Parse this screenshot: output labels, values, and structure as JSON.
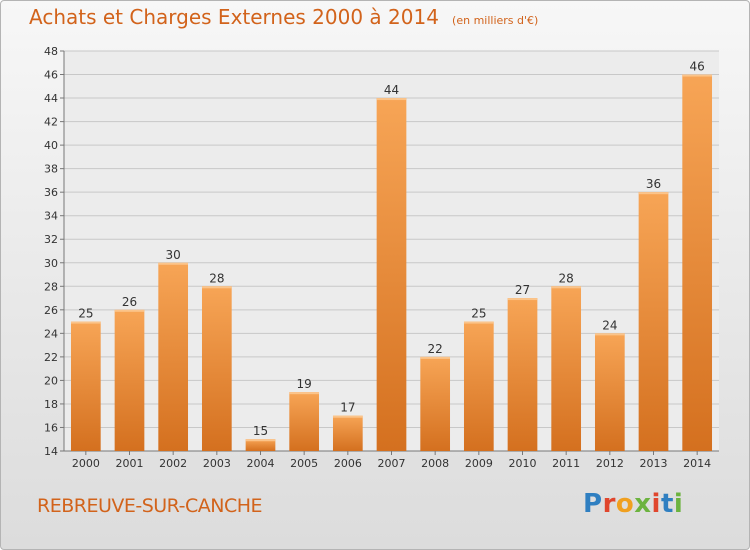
{
  "header": {
    "title": "Achats et Charges Externes 2000 à 2014",
    "subtitle": "(en milliers d'€)"
  },
  "footer": {
    "town": "REBREUVE-SUR-CANCHE",
    "brand": "Proxiti",
    "brand_colors": [
      "#2f7fc1",
      "#e0462d",
      "#f0a020",
      "#6cb33f",
      "#e0462d",
      "#2f7fc1",
      "#6cb33f"
    ]
  },
  "chart_data": {
    "type": "bar",
    "categories": [
      "2000",
      "2001",
      "2002",
      "2003",
      "2004",
      "2005",
      "2006",
      "2007",
      "2008",
      "2009",
      "2010",
      "2011",
      "2012",
      "2013",
      "2014"
    ],
    "values": [
      25,
      26,
      30,
      28,
      15,
      19,
      17,
      44,
      22,
      25,
      27,
      28,
      24,
      36,
      46
    ],
    "ylim": [
      14,
      48
    ],
    "yticks": [
      14,
      16,
      18,
      20,
      22,
      24,
      26,
      28,
      30,
      32,
      34,
      36,
      38,
      40,
      42,
      44,
      46,
      48
    ],
    "grid": true,
    "bar_color_top": "#f7a556",
    "bar_color_bottom": "#d4701f",
    "title": "Achats et Charges Externes 2000 à 2014",
    "xlabel": "",
    "ylabel": ""
  }
}
